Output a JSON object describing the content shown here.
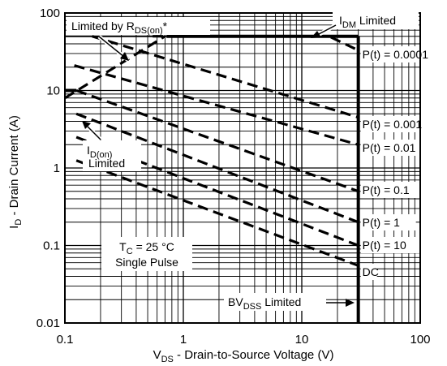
{
  "chart_data": {
    "type": "line",
    "title": "",
    "x_scale": "log",
    "y_scale": "log",
    "xlim": [
      0.1,
      100
    ],
    "ylim": [
      0.01,
      100
    ],
    "grid": true,
    "xlabel": {
      "main": "V",
      "sub": "DS",
      "rest": " - Drain-to-Source Voltage (V)"
    },
    "ylabel": {
      "main": "I",
      "sub": "D",
      "rest": " - Drain Current (A)"
    },
    "x_ticks": [
      {
        "value": 0.1,
        "label": "0.1"
      },
      {
        "value": 1,
        "label": "1"
      },
      {
        "value": 10,
        "label": "10"
      },
      {
        "value": 100,
        "label": "100"
      }
    ],
    "y_ticks": [
      {
        "value": 100,
        "label": "100"
      },
      {
        "value": 10,
        "label": "10"
      },
      {
        "value": 1,
        "label": "1"
      },
      {
        "value": 0.1,
        "label": "0.1"
      },
      {
        "value": 0.01,
        "label": "0.01"
      }
    ],
    "limits": {
      "idm_current": 50,
      "id_on_current": 10,
      "bvdss_voltage": 30
    },
    "series": [
      {
        "name": "P(t) = 0.0001",
        "style": "dashed",
        "points": [
          [
            0.55,
            50
          ],
          [
            17,
            50
          ],
          [
            30,
            33
          ]
        ]
      },
      {
        "name": "P(t) = 0.001",
        "style": "dashed",
        "points": [
          [
            0.17,
            50
          ],
          [
            30,
            4.5
          ]
        ]
      },
      {
        "name": "P(t) = 0.01",
        "style": "dashed",
        "points": [
          [
            0.12,
            21
          ],
          [
            30,
            2
          ]
        ]
      },
      {
        "name": "P(t) = 0.1",
        "style": "dashed",
        "points": [
          [
            0.125,
            10
          ],
          [
            30,
            0.5
          ]
        ]
      },
      {
        "name": "P(t) = 1",
        "style": "dashed",
        "points": [
          [
            0.125,
            5
          ],
          [
            30,
            0.2
          ]
        ]
      },
      {
        "name": "P(t) = 10",
        "style": "dashed",
        "points": [
          [
            0.125,
            2.5
          ],
          [
            30,
            0.1
          ]
        ]
      },
      {
        "name": "DC",
        "style": "dashed",
        "points": [
          [
            0.125,
            1.25
          ],
          [
            30,
            0.055
          ]
        ]
      },
      {
        "name": "R_DS(on) limit",
        "style": "dashed",
        "points": [
          [
            0.1,
            8
          ],
          [
            0.7,
            50
          ]
        ]
      }
    ],
    "annotations": {
      "rds_on": {
        "main": "Limited by R",
        "sub": "DS(on)",
        "rest": "*"
      },
      "idm": {
        "main": "I",
        "sub": "DM",
        "rest": " Limited"
      },
      "id_on": {
        "main": "I",
        "sub": "D(on)",
        "rest": "Limited"
      },
      "condition": {
        "main": "T",
        "sub": "C",
        "rest": " = 25 °C",
        "line2": "Single Pulse"
      },
      "bvdss": {
        "main": "BV",
        "sub": "DSS",
        "rest": " Limited"
      }
    }
  }
}
